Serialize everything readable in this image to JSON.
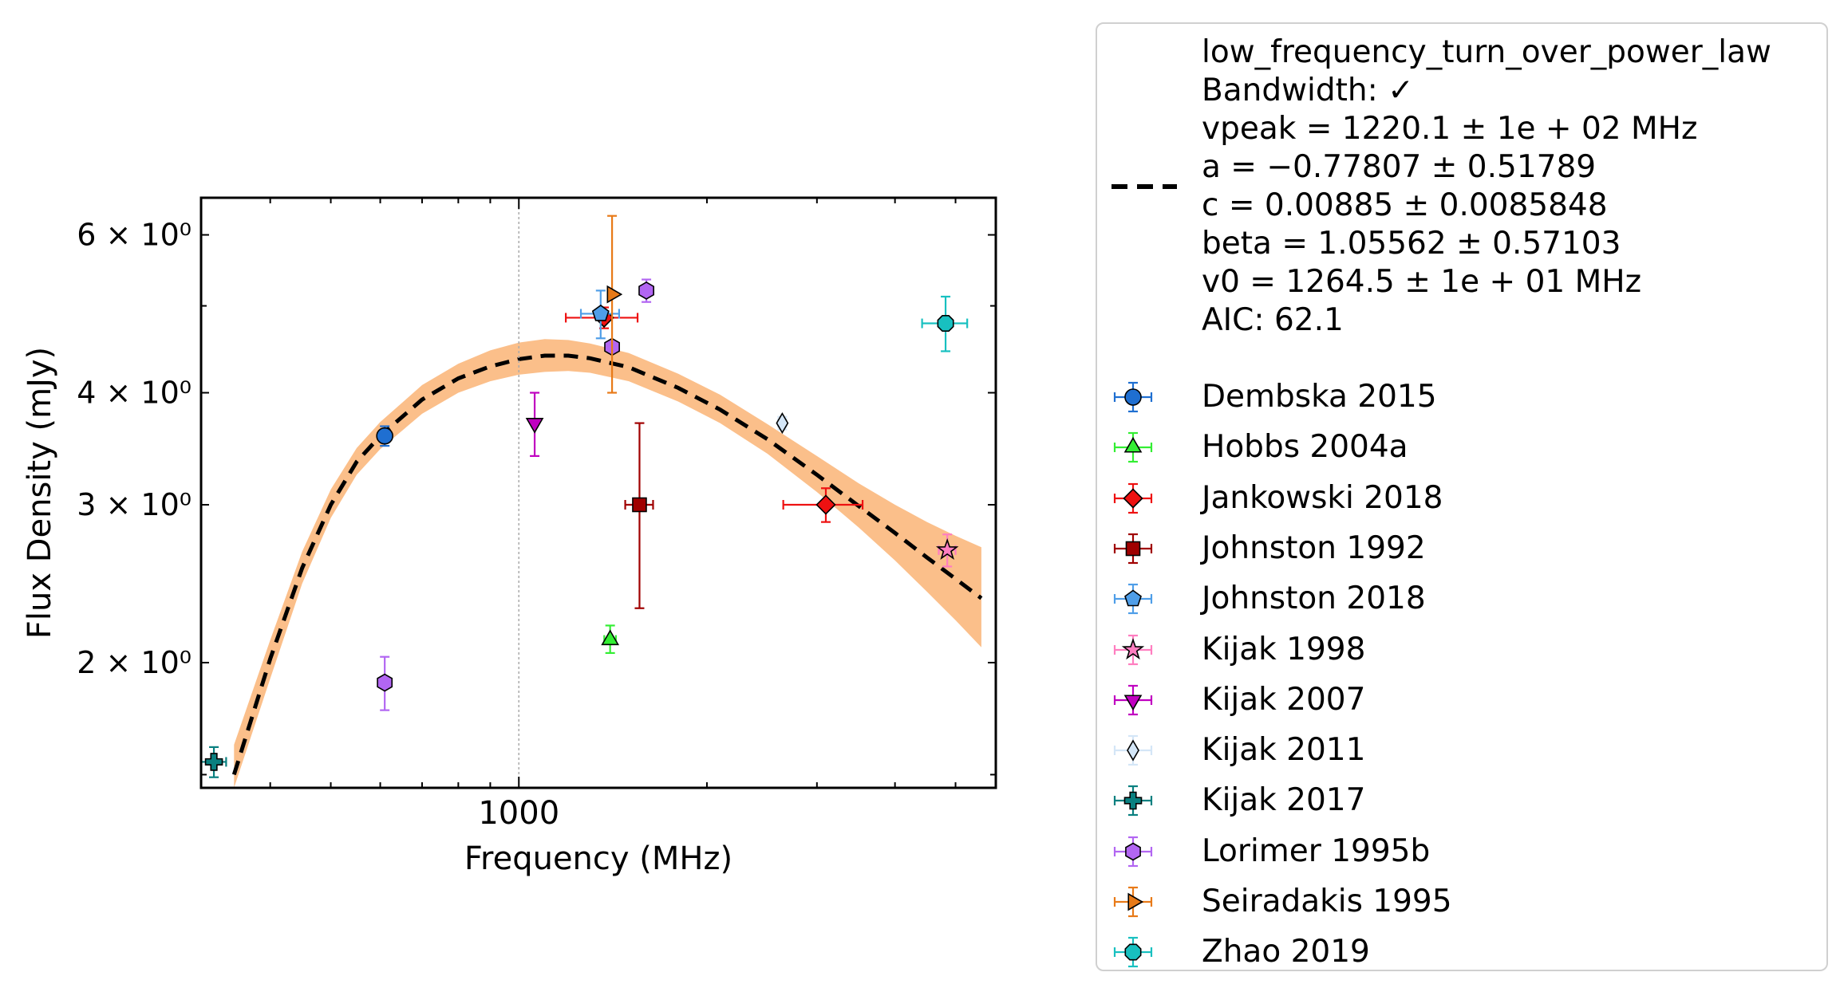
{
  "chart_data": {
    "type": "scatter",
    "xlabel": "Frequency (MHz)",
    "ylabel": "Flux Density (mJy)",
    "xscale": "log",
    "yscale": "log",
    "xlim": [
      310,
      5800
    ],
    "ylim": [
      1.45,
      6.6
    ],
    "x_ticks": [
      {
        "value": 1000,
        "label": "1000"
      }
    ],
    "y_ticks": [
      {
        "value": 2,
        "label": "2 × 10⁰"
      },
      {
        "value": 3,
        "label": "3 × 10⁰"
      },
      {
        "value": 4,
        "label": "4 × 10⁰"
      },
      {
        "value": 6,
        "label": "6 × 10⁰"
      }
    ],
    "vline": 1000,
    "fit": {
      "model": "low_frequency_turn_over_power_law",
      "vpeak": 1220.1,
      "a": -0.77807,
      "c": 0.00885,
      "beta": 1.05562,
      "v0": 1264.5,
      "x_range": [
        350,
        5500
      ],
      "color": "#000000",
      "band_color": "#fbbf8a",
      "curve": [
        {
          "x": 350,
          "y": 1.5,
          "lo": 1.4,
          "hi": 1.62
        },
        {
          "x": 400,
          "y": 2.02,
          "lo": 1.92,
          "hi": 2.12
        },
        {
          "x": 450,
          "y": 2.55,
          "lo": 2.45,
          "hi": 2.66
        },
        {
          "x": 500,
          "y": 3.0,
          "lo": 2.9,
          "hi": 3.12
        },
        {
          "x": 550,
          "y": 3.35,
          "lo": 3.24,
          "hi": 3.47
        },
        {
          "x": 600,
          "y": 3.58,
          "lo": 3.46,
          "hi": 3.71
        },
        {
          "x": 700,
          "y": 3.93,
          "lo": 3.79,
          "hi": 4.08
        },
        {
          "x": 800,
          "y": 4.15,
          "lo": 4.0,
          "hi": 4.31
        },
        {
          "x": 900,
          "y": 4.28,
          "lo": 4.12,
          "hi": 4.46
        },
        {
          "x": 1000,
          "y": 4.36,
          "lo": 4.19,
          "hi": 4.55
        },
        {
          "x": 1100,
          "y": 4.4,
          "lo": 4.22,
          "hi": 4.59
        },
        {
          "x": 1200,
          "y": 4.4,
          "lo": 4.23,
          "hi": 4.58
        },
        {
          "x": 1300,
          "y": 4.37,
          "lo": 4.21,
          "hi": 4.54
        },
        {
          "x": 1500,
          "y": 4.27,
          "lo": 4.12,
          "hi": 4.43
        },
        {
          "x": 1800,
          "y": 4.05,
          "lo": 3.91,
          "hi": 4.2
        },
        {
          "x": 2100,
          "y": 3.83,
          "lo": 3.7,
          "hi": 3.98
        },
        {
          "x": 2500,
          "y": 3.55,
          "lo": 3.42,
          "hi": 3.69
        },
        {
          "x": 3000,
          "y": 3.24,
          "lo": 3.1,
          "hi": 3.4
        },
        {
          "x": 3500,
          "y": 2.99,
          "lo": 2.83,
          "hi": 3.17
        },
        {
          "x": 4000,
          "y": 2.79,
          "lo": 2.6,
          "hi": 3.0
        },
        {
          "x": 4500,
          "y": 2.62,
          "lo": 2.4,
          "hi": 2.87
        },
        {
          "x": 5000,
          "y": 2.48,
          "lo": 2.23,
          "hi": 2.77
        },
        {
          "x": 5500,
          "y": 2.36,
          "lo": 2.08,
          "hi": 2.69
        }
      ]
    },
    "series": [
      {
        "name": "Dembska 2015",
        "marker": "circle",
        "color": "#1f6fd1",
        "ecolor": "#1f6fd1",
        "points": [
          {
            "x": 610,
            "y": 3.58,
            "xerr": 10,
            "ylo": 3.49,
            "yhi": 3.67
          }
        ]
      },
      {
        "name": "Hobbs 2004a",
        "marker": "triangle-up",
        "color": "#33ee33",
        "ecolor": "#33ee33",
        "points": [
          {
            "x": 1400,
            "y": 2.12,
            "xerr": 30,
            "ylo": 2.05,
            "yhi": 2.2
          }
        ]
      },
      {
        "name": "Jankowski 2018",
        "marker": "diamond",
        "color": "#ee1111",
        "ecolor": "#ee1111",
        "points": [
          {
            "x": 1369,
            "y": 4.85,
            "xerr": 180,
            "ylo": 4.72,
            "yhi": 4.98
          },
          {
            "x": 3100,
            "y": 3.0,
            "xerr": 450,
            "ylo": 2.87,
            "yhi": 3.13
          }
        ]
      },
      {
        "name": "Johnston 1992",
        "marker": "square",
        "color": "#a00000",
        "ecolor": "#a00000",
        "points": [
          {
            "x": 1560,
            "y": 3.0,
            "xerr": 80,
            "ylo": 2.3,
            "yhi": 3.7
          }
        ]
      },
      {
        "name": "Johnston 2018",
        "marker": "pentagon",
        "color": "#4f9ee8",
        "ecolor": "#4f9ee8",
        "points": [
          {
            "x": 1352,
            "y": 4.9,
            "xerr": 95,
            "ylo": 4.6,
            "yhi": 5.2
          }
        ]
      },
      {
        "name": "Kijak 1998",
        "marker": "star",
        "color": "#ff7ec0",
        "ecolor": "#ff7ec0",
        "points": [
          {
            "x": 4850,
            "y": 2.67,
            "xerr": 150,
            "ylo": 2.56,
            "yhi": 2.78
          }
        ]
      },
      {
        "name": "Kijak 2007",
        "marker": "triangle-down",
        "color": "#c000c0",
        "ecolor": "#c000c0",
        "points": [
          {
            "x": 1060,
            "y": 3.7,
            "xerr": 10,
            "ylo": 3.4,
            "yhi": 4.0
          }
        ]
      },
      {
        "name": "Kijak 2011",
        "marker": "thin-diamond",
        "color": "#d4e6f7",
        "ecolor": "#d4e6f7",
        "points": [
          {
            "x": 2640,
            "y": 3.7,
            "xerr": 40,
            "ylo": 3.64,
            "yhi": 3.76
          }
        ]
      },
      {
        "name": "Kijak 2017",
        "marker": "plus",
        "color": "#0a8080",
        "ecolor": "#0a8080",
        "points": [
          {
            "x": 325,
            "y": 1.55,
            "xerr": 15,
            "ylo": 1.49,
            "yhi": 1.61
          }
        ]
      },
      {
        "name": "Lorimer 1995b",
        "marker": "hexagon",
        "color": "#b266f2",
        "ecolor": "#b266f2",
        "points": [
          {
            "x": 610,
            "y": 1.9,
            "xerr": 0,
            "ylo": 1.77,
            "yhi": 2.03
          },
          {
            "x": 1410,
            "y": 4.5,
            "xerr": 0,
            "ylo": 4.5,
            "yhi": 4.5
          },
          {
            "x": 1600,
            "y": 5.2,
            "xerr": 0,
            "ylo": 5.05,
            "yhi": 5.35
          }
        ]
      },
      {
        "name": "Seiradakis 1995",
        "marker": "triangle-right",
        "color": "#e87a18",
        "ecolor": "#e87a18",
        "points": [
          {
            "x": 1410,
            "y": 5.15,
            "xerr": 0,
            "ylo": 4.0,
            "yhi": 6.3
          }
        ]
      },
      {
        "name": "Zhao 2019",
        "marker": "octagon",
        "color": "#18c0c0",
        "ecolor": "#18c0c0",
        "points": [
          {
            "x": 4820,
            "y": 4.78,
            "xerr": 400,
            "ylo": 4.45,
            "yhi": 5.12
          }
        ]
      }
    ]
  },
  "legend": {
    "fit_lines": [
      "low_frequency_turn_over_power_law",
      "Bandwidth: ✓",
      "vpeak = 1220.1 ± 1e + 02 MHz",
      "a = −0.77807 ± 0.51789",
      "c = 0.00885 ± 0.0085848",
      "beta = 1.05562 ± 0.57103",
      "v0 = 1264.5 ± 1e + 01 MHz",
      "AIC: 62.1"
    ],
    "entries": [
      "Dembska 2015",
      "Hobbs 2004a",
      "Jankowski 2018",
      "Johnston 1992",
      "Johnston 2018",
      "Kijak 1998",
      "Kijak 2007",
      "Kijak 2011",
      "Kijak 2017",
      "Lorimer 1995b",
      "Seiradakis 1995",
      "Zhao 2019"
    ]
  }
}
